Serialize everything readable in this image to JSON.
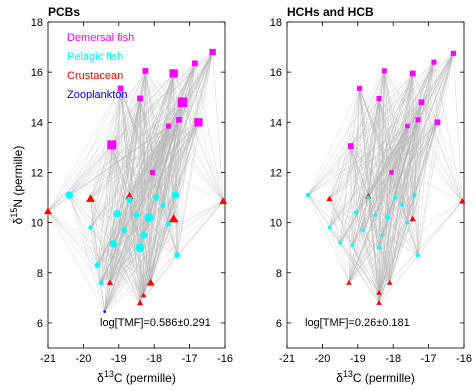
{
  "colors": {
    "demersal": "#ff00ff",
    "pelagic": "#00ffff",
    "crustacean": "#ff0000",
    "zooplankton": "#0000cc",
    "links": "#b4b4b4"
  },
  "chart_data": [
    {
      "type": "scatter",
      "title": "PCBs",
      "xlabel_delta": "δ",
      "xlabel_sup": "13",
      "xlabel_rest": "C (permille)",
      "ylabel_delta": "δ",
      "ylabel_sup": "15",
      "ylabel_rest": "N (permille)",
      "xlim": [
        -21,
        -16
      ],
      "ylim": [
        5,
        18
      ],
      "xticks": [
        "-21",
        "-20",
        "-19",
        "-18",
        "-17",
        "-16"
      ],
      "yticks": [
        "6",
        "8",
        "10",
        "12",
        "14",
        "16",
        "18"
      ],
      "grid": false,
      "legend_position": "top-left",
      "legend": [
        "Demersal fish",
        "Pelagic fish",
        "Crustacean",
        "Zooplankton"
      ],
      "annotation": "log[TMF]=0.586±0.291",
      "series": [
        {
          "name": "Demersal fish",
          "marker": "square",
          "points": [
            {
              "x": -19.2,
              "y": 13.1,
              "s": 1.4
            },
            {
              "x": -18.95,
              "y": 15.35,
              "s": 0.9
            },
            {
              "x": -18.4,
              "y": 14.95,
              "s": 0.9
            },
            {
              "x": -18.25,
              "y": 16.05,
              "s": 0.9
            },
            {
              "x": -18.05,
              "y": 12.0,
              "s": 0.8
            },
            {
              "x": -17.6,
              "y": 13.85,
              "s": 0.8
            },
            {
              "x": -17.45,
              "y": 15.95,
              "s": 1.3
            },
            {
              "x": -17.3,
              "y": 14.1,
              "s": 0.9
            },
            {
              "x": -17.2,
              "y": 14.8,
              "s": 1.5
            },
            {
              "x": -16.85,
              "y": 16.35,
              "s": 0.9
            },
            {
              "x": -16.75,
              "y": 14.0,
              "s": 1.3
            },
            {
              "x": -16.35,
              "y": 16.8,
              "s": 1.0
            }
          ]
        },
        {
          "name": "Pelagic fish",
          "marker": "circle",
          "points": [
            {
              "x": -20.4,
              "y": 11.1,
              "s": 1.2
            },
            {
              "x": -19.8,
              "y": 9.8,
              "s": 0.7
            },
            {
              "x": -19.6,
              "y": 8.3,
              "s": 0.9
            },
            {
              "x": -19.5,
              "y": 7.6,
              "s": 0.8
            },
            {
              "x": -19.15,
              "y": 9.15,
              "s": 1.2
            },
            {
              "x": -19.05,
              "y": 10.35,
              "s": 1.2
            },
            {
              "x": -18.85,
              "y": 9.7,
              "s": 0.9
            },
            {
              "x": -18.7,
              "y": 10.9,
              "s": 1.0
            },
            {
              "x": -18.5,
              "y": 10.3,
              "s": 0.9
            },
            {
              "x": -18.4,
              "y": 9.0,
              "s": 1.4
            },
            {
              "x": -18.3,
              "y": 9.5,
              "s": 1.1
            },
            {
              "x": -18.15,
              "y": 10.2,
              "s": 1.4
            },
            {
              "x": -17.95,
              "y": 11.0,
              "s": 1.0
            },
            {
              "x": -17.75,
              "y": 10.7,
              "s": 0.8
            },
            {
              "x": -17.6,
              "y": 9.95,
              "s": 0.8
            },
            {
              "x": -17.4,
              "y": 11.1,
              "s": 1.2
            },
            {
              "x": -17.35,
              "y": 8.7,
              "s": 0.9
            }
          ]
        },
        {
          "name": "Crustacean",
          "marker": "triangle",
          "points": [
            {
              "x": -21.0,
              "y": 10.45,
              "s": 1.0
            },
            {
              "x": -19.8,
              "y": 10.95,
              "s": 1.1
            },
            {
              "x": -19.25,
              "y": 7.6,
              "s": 0.8
            },
            {
              "x": -18.7,
              "y": 11.05,
              "s": 1.0
            },
            {
              "x": -18.4,
              "y": 6.8,
              "s": 0.8
            },
            {
              "x": -18.3,
              "y": 7.1,
              "s": 0.7
            },
            {
              "x": -18.1,
              "y": 7.6,
              "s": 1.0
            },
            {
              "x": -17.45,
              "y": 10.15,
              "s": 1.2
            },
            {
              "x": -16.05,
              "y": 10.85,
              "s": 1.0
            }
          ]
        },
        {
          "name": "Zooplankton",
          "marker": "dot",
          "points": [
            {
              "x": -19.4,
              "y": 6.45,
              "s": 0.7
            }
          ]
        }
      ]
    },
    {
      "type": "scatter",
      "title": "HCHs and HCB",
      "xlabel_delta": "δ",
      "xlabel_sup": "13",
      "xlabel_rest": "C (permille)",
      "ylabel_delta": "",
      "ylabel_sup": "",
      "ylabel_rest": "",
      "xlim": [
        -21,
        -16
      ],
      "ylim": [
        5,
        18
      ],
      "xticks": [
        "-21",
        "-20",
        "-19",
        "-18",
        "-17",
        "-16"
      ],
      "yticks": [
        "6",
        "8",
        "10",
        "12",
        "14",
        "16",
        "18"
      ],
      "grid": false,
      "legend_position": "",
      "legend": [],
      "annotation": "log[TMF]=0.26±0.181",
      "series": [
        {
          "name": "Demersal fish",
          "marker": "square",
          "points": [
            {
              "x": -19.2,
              "y": 13.05,
              "s": 0.9
            },
            {
              "x": -18.95,
              "y": 15.35,
              "s": 0.8
            },
            {
              "x": -18.4,
              "y": 14.95,
              "s": 0.8
            },
            {
              "x": -18.25,
              "y": 16.05,
              "s": 0.8
            },
            {
              "x": -18.05,
              "y": 12.0,
              "s": 0.7
            },
            {
              "x": -17.6,
              "y": 13.85,
              "s": 0.7
            },
            {
              "x": -17.45,
              "y": 15.95,
              "s": 0.9
            },
            {
              "x": -17.3,
              "y": 14.1,
              "s": 0.8
            },
            {
              "x": -17.2,
              "y": 14.8,
              "s": 0.9
            },
            {
              "x": -16.85,
              "y": 16.4,
              "s": 0.8
            },
            {
              "x": -16.75,
              "y": 14.0,
              "s": 0.9
            },
            {
              "x": -16.3,
              "y": 16.75,
              "s": 0.8
            }
          ]
        },
        {
          "name": "Pelagic fish",
          "marker": "circle",
          "points": [
            {
              "x": -20.4,
              "y": 11.1,
              "s": 0.7
            },
            {
              "x": -19.8,
              "y": 9.8,
              "s": 0.6
            },
            {
              "x": -19.5,
              "y": 9.2,
              "s": 0.6
            },
            {
              "x": -19.15,
              "y": 9.1,
              "s": 0.6
            },
            {
              "x": -19.05,
              "y": 10.4,
              "s": 0.7
            },
            {
              "x": -18.85,
              "y": 9.7,
              "s": 0.6
            },
            {
              "x": -18.7,
              "y": 11.0,
              "s": 0.6
            },
            {
              "x": -18.5,
              "y": 10.3,
              "s": 0.6
            },
            {
              "x": -18.4,
              "y": 9.0,
              "s": 0.7
            },
            {
              "x": -18.3,
              "y": 9.5,
              "s": 0.6
            },
            {
              "x": -18.15,
              "y": 10.2,
              "s": 0.7
            },
            {
              "x": -17.95,
              "y": 11.0,
              "s": 0.7
            },
            {
              "x": -17.75,
              "y": 10.7,
              "s": 0.6
            },
            {
              "x": -17.6,
              "y": 10.0,
              "s": 0.6
            },
            {
              "x": -17.4,
              "y": 11.1,
              "s": 0.7
            },
            {
              "x": -17.3,
              "y": 8.7,
              "s": 0.6
            }
          ]
        },
        {
          "name": "Crustacean",
          "marker": "triangle",
          "points": [
            {
              "x": -19.8,
              "y": 10.95,
              "s": 0.8
            },
            {
              "x": -19.25,
              "y": 7.6,
              "s": 0.7
            },
            {
              "x": -18.7,
              "y": 11.05,
              "s": 0.8
            },
            {
              "x": -18.4,
              "y": 6.8,
              "s": 0.7
            },
            {
              "x": -18.4,
              "y": 7.2,
              "s": 0.7
            },
            {
              "x": -18.1,
              "y": 7.6,
              "s": 0.7
            },
            {
              "x": -17.45,
              "y": 10.15,
              "s": 0.8
            },
            {
              "x": -16.05,
              "y": 10.85,
              "s": 0.8
            }
          ]
        },
        {
          "name": "Zooplankton",
          "marker": "dot",
          "points": []
        }
      ]
    }
  ]
}
